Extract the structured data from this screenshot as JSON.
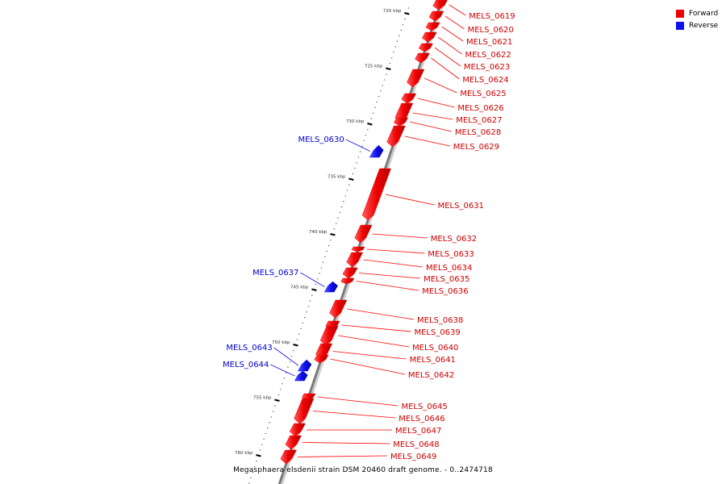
{
  "legend": {
    "forward": {
      "label": "Forward",
      "color": "#ff0000"
    },
    "reverse": {
      "label": "Reverse",
      "color": "#1010ee"
    }
  },
  "caption": "Megasphaera elsdenii strain DSM 20460 draft genome. - 0..2474718",
  "ticks": [
    {
      "kbp": 720,
      "label": "720 kbp"
    },
    {
      "kbp": 725,
      "label": "725 kbp"
    },
    {
      "kbp": 730,
      "label": "730 kbp"
    },
    {
      "kbp": 735,
      "label": "735 kbp"
    },
    {
      "kbp": 740,
      "label": "740 kbp"
    },
    {
      "kbp": 745,
      "label": "745 kbp"
    },
    {
      "kbp": 750,
      "label": "750 kbp"
    },
    {
      "kbp": 755,
      "label": "755 kbp"
    },
    {
      "kbp": 760,
      "label": "760 kbp"
    }
  ],
  "genes": [
    {
      "id": "MELS_0619",
      "strand": "forward"
    },
    {
      "id": "MELS_0620",
      "strand": "forward"
    },
    {
      "id": "MELS_0621",
      "strand": "forward"
    },
    {
      "id": "MELS_0622",
      "strand": "forward"
    },
    {
      "id": "MELS_0623",
      "strand": "forward"
    },
    {
      "id": "MELS_0624",
      "strand": "forward"
    },
    {
      "id": "MELS_0625",
      "strand": "forward"
    },
    {
      "id": "MELS_0626",
      "strand": "forward"
    },
    {
      "id": "MELS_0627",
      "strand": "forward"
    },
    {
      "id": "MELS_0628",
      "strand": "forward"
    },
    {
      "id": "MELS_0629",
      "strand": "forward"
    },
    {
      "id": "MELS_0630",
      "strand": "reverse"
    },
    {
      "id": "MELS_0631",
      "strand": "forward"
    },
    {
      "id": "MELS_0632",
      "strand": "forward"
    },
    {
      "id": "MELS_0633",
      "strand": "forward"
    },
    {
      "id": "MELS_0634",
      "strand": "forward"
    },
    {
      "id": "MELS_0635",
      "strand": "forward"
    },
    {
      "id": "MELS_0636",
      "strand": "forward"
    },
    {
      "id": "MELS_0637",
      "strand": "reverse"
    },
    {
      "id": "MELS_0638",
      "strand": "forward"
    },
    {
      "id": "MELS_0639",
      "strand": "forward"
    },
    {
      "id": "MELS_0640",
      "strand": "forward"
    },
    {
      "id": "MELS_0641",
      "strand": "forward"
    },
    {
      "id": "MELS_0642",
      "strand": "forward"
    },
    {
      "id": "MELS_0643",
      "strand": "reverse"
    },
    {
      "id": "MELS_0644",
      "strand": "reverse"
    },
    {
      "id": "MELS_0645",
      "strand": "forward"
    },
    {
      "id": "MELS_0646",
      "strand": "forward"
    },
    {
      "id": "MELS_0647",
      "strand": "forward"
    },
    {
      "id": "MELS_0648",
      "strand": "forward"
    },
    {
      "id": "MELS_0649",
      "strand": "forward"
    }
  ]
}
